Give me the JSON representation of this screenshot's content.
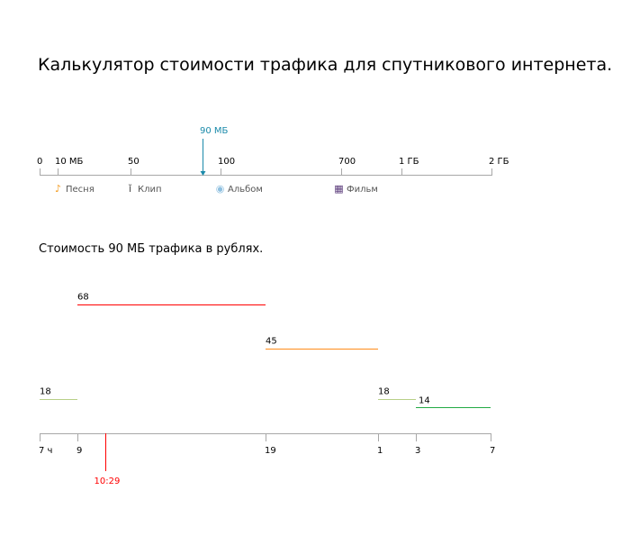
{
  "title": "Калькулятор стоимости трафика для спутникового интернета.",
  "subtitle": "Стоимость 90 МБ трафика в рублях.",
  "traffic_scale": {
    "ticks": [
      "0",
      "10 МБ",
      "50",
      "100",
      "700",
      "1 ГБ",
      "2 ГБ"
    ],
    "marker": {
      "label": "90 МБ",
      "value_mb": 90,
      "color": "#1a8aaa"
    },
    "legend": [
      {
        "label": "Песня",
        "icon": "music-note-icon",
        "color": "#f39a1e"
      },
      {
        "label": "Клип",
        "icon": "microphone-icon",
        "color": "#444444"
      },
      {
        "label": "Альбом",
        "icon": "cd-disc-icon",
        "color": "#8fc0e0"
      },
      {
        "label": "Фильм",
        "icon": "film-icon",
        "color": "#5a3a7a"
      }
    ]
  },
  "chart_data": {
    "type": "line",
    "x_ticks": [
      "7 ч",
      "9",
      "19",
      "1",
      "3",
      "7"
    ],
    "xlim_hours": [
      7,
      31
    ],
    "current_time": {
      "label": "10:29",
      "hour": 10.483,
      "color": "#ff0000"
    },
    "segments": [
      {
        "label": "18",
        "value": 18,
        "from": 7,
        "to": 9,
        "color": "#b8cf88"
      },
      {
        "label": "68",
        "value": 68,
        "from": 9,
        "to": 19,
        "color": "#ff0000"
      },
      {
        "label": "45",
        "value": 45,
        "from": 19,
        "to": 25,
        "color": "#ff8c1a"
      },
      {
        "label": "18",
        "value": 18,
        "from": 25,
        "to": 27,
        "color": "#b8cf88"
      },
      {
        "label": "14",
        "value": 14,
        "from": 27,
        "to": 31,
        "color": "#22aa44"
      }
    ]
  }
}
